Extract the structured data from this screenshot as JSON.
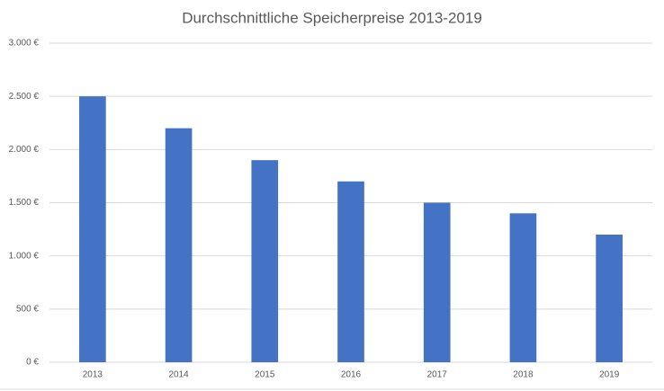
{
  "chart_data": {
    "type": "bar",
    "title": "Durchschnittliche Speicherpreise 2013-2019",
    "categories": [
      "2013",
      "2014",
      "2015",
      "2016",
      "2017",
      "2018",
      "2019"
    ],
    "values": [
      2500,
      2200,
      1900,
      1700,
      1500,
      1400,
      1200
    ],
    "color": "#4472c4",
    "ylim": [
      0,
      3000
    ],
    "yticks": [
      {
        "value": 0,
        "label": "0 €"
      },
      {
        "value": 500,
        "label": "500 €"
      },
      {
        "value": 1000,
        "label": "1.000 €"
      },
      {
        "value": 1500,
        "label": "1.500 €"
      },
      {
        "value": 2000,
        "label": "2.000 €"
      },
      {
        "value": 2500,
        "label": "2.500 €"
      },
      {
        "value": 3000,
        "label": "3.000 €"
      }
    ],
    "grid": true
  }
}
